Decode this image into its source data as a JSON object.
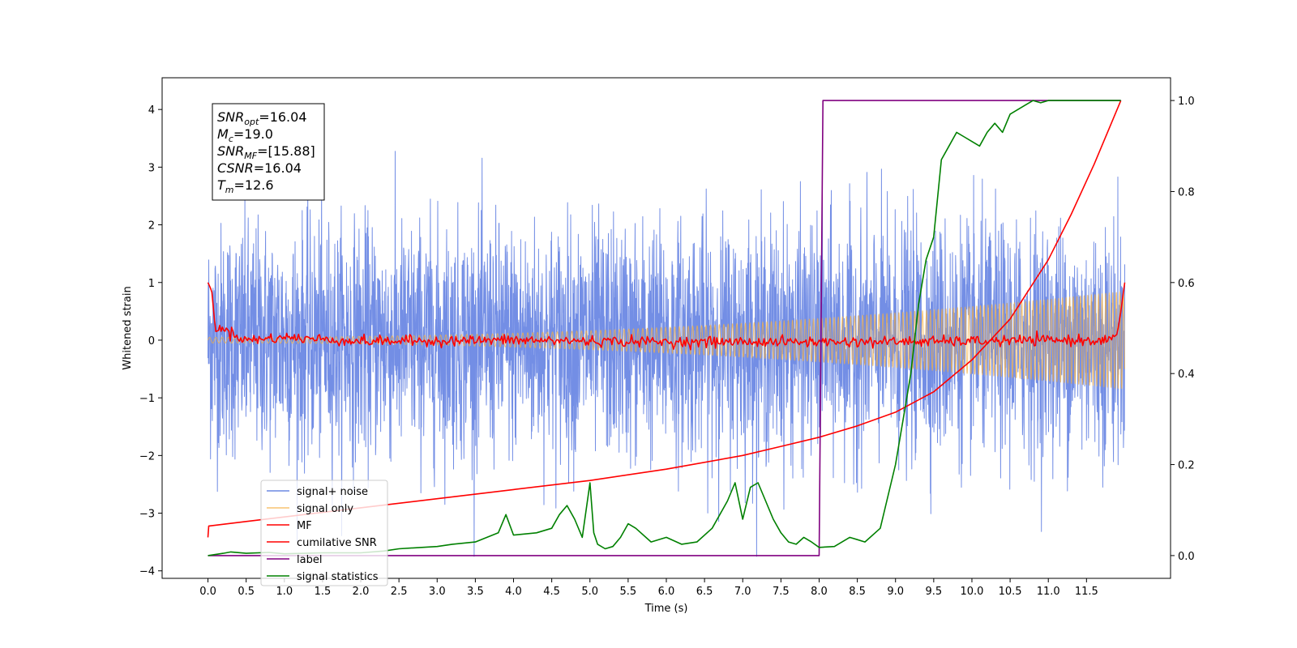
{
  "chart_data": {
    "type": "line",
    "xlabel": "Time (s)",
    "ylabel": "Whitened strain",
    "xlim": [
      -0.6,
      12.6
    ],
    "ylim": [
      -4.13,
      4.55
    ],
    "y2lim": [
      -0.05,
      1.05
    ],
    "x_ticks": [
      "0.0",
      "0.5",
      "1.0",
      "1.5",
      "2.0",
      "2.5",
      "3.0",
      "3.5",
      "4.0",
      "4.5",
      "5.0",
      "5.5",
      "6.0",
      "6.5",
      "7.0",
      "7.5",
      "8.0",
      "8.5",
      "9.0",
      "9.5",
      "10.0",
      "10.5",
      "11.0",
      "11.5"
    ],
    "y_ticks": [
      "4",
      "3",
      "2",
      "1",
      "0",
      "−1",
      "−2",
      "−3",
      "−4"
    ],
    "y2_ticks": [
      "1.0",
      "0.8",
      "0.6",
      "0.4",
      "0.2",
      "0.0"
    ],
    "legend_position": "lower-left",
    "annotation": [
      {
        "base": "SNR",
        "sub": "opt",
        "value": "=16.04"
      },
      {
        "base": "M",
        "sub": "c",
        "value": "=19.0"
      },
      {
        "base": "SNR",
        "sub": "MF",
        "value": "=[15.88]"
      },
      {
        "base": "CSNR",
        "sub": "",
        "value": "=16.04"
      },
      {
        "base": "T",
        "sub": "m",
        "value": "=12.6"
      }
    ],
    "series": [
      {
        "name": "signal+ noise",
        "axis": "left",
        "color": "#6b88e4",
        "kind": "noise",
        "x_range": [
          0,
          12
        ],
        "std": 1.0,
        "approx_extremes": {
          "max": 4.18,
          "min": -3.75
        }
      },
      {
        "name": "signal only",
        "axis": "left",
        "color": "#f5b041",
        "kind": "chirp",
        "x_range": [
          0,
          12
        ],
        "amplitude_start": 0.05,
        "amplitude_end": 0.85
      },
      {
        "name": "MF",
        "axis": "left",
        "color": "#ff0000",
        "kind": "mf",
        "x": [
          0.0,
          0.05,
          0.1,
          0.2,
          0.5,
          1.0,
          2.0,
          4.0,
          6.0,
          8.0,
          10.0,
          11.0,
          11.8,
          11.9,
          11.95,
          12.0
        ],
        "y": [
          1.0,
          0.85,
          0.15,
          0.2,
          0.0,
          0.05,
          -0.02,
          0.0,
          -0.03,
          -0.03,
          -0.02,
          0.0,
          0.0,
          0.1,
          0.5,
          1.0
        ]
      },
      {
        "name": "cumilative SNR",
        "axis": "right",
        "color": "#ff0000",
        "kind": "line",
        "x": [
          0.0,
          0.01,
          0.5,
          1.0,
          2.0,
          3.0,
          4.0,
          5.0,
          6.0,
          7.0,
          7.5,
          8.0,
          8.5,
          9.0,
          9.5,
          10.0,
          10.5,
          11.0,
          11.3,
          11.6,
          11.8,
          11.95
        ],
        "y": [
          0.04,
          0.065,
          0.075,
          0.085,
          0.105,
          0.125,
          0.145,
          0.165,
          0.19,
          0.22,
          0.24,
          0.26,
          0.285,
          0.315,
          0.36,
          0.43,
          0.52,
          0.65,
          0.75,
          0.86,
          0.94,
          1.0
        ]
      },
      {
        "name": "label",
        "axis": "right",
        "color": "#800080",
        "kind": "line",
        "x": [
          0.0,
          8.0,
          8.05,
          11.95
        ],
        "y": [
          0.0,
          0.0,
          1.0,
          1.0
        ]
      },
      {
        "name": "signal statistics",
        "axis": "right",
        "color": "#008000",
        "kind": "line",
        "x": [
          0.0,
          0.2,
          0.3,
          0.5,
          0.8,
          1.0,
          1.5,
          2.0,
          2.3,
          2.5,
          2.8,
          3.0,
          3.2,
          3.5,
          3.8,
          3.9,
          4.0,
          4.3,
          4.5,
          4.6,
          4.7,
          4.8,
          4.9,
          5.0,
          5.05,
          5.1,
          5.2,
          5.3,
          5.4,
          5.5,
          5.6,
          5.8,
          6.0,
          6.2,
          6.4,
          6.6,
          6.8,
          6.9,
          7.0,
          7.1,
          7.2,
          7.3,
          7.4,
          7.5,
          7.6,
          7.7,
          7.8,
          7.9,
          8.0,
          8.2,
          8.4,
          8.5,
          8.6,
          8.8,
          9.0,
          9.1,
          9.2,
          9.3,
          9.4,
          9.5,
          9.6,
          9.7,
          9.8,
          9.9,
          10.0,
          10.1,
          10.2,
          10.3,
          10.4,
          10.5,
          10.6,
          10.7,
          10.8,
          10.9,
          11.0,
          11.2,
          11.5,
          11.95
        ],
        "y": [
          0.0,
          0.005,
          0.008,
          0.005,
          0.007,
          0.004,
          0.006,
          0.006,
          0.01,
          0.015,
          0.018,
          0.02,
          0.025,
          0.03,
          0.05,
          0.09,
          0.045,
          0.05,
          0.06,
          0.09,
          0.11,
          0.08,
          0.04,
          0.16,
          0.05,
          0.025,
          0.015,
          0.02,
          0.04,
          0.07,
          0.06,
          0.03,
          0.04,
          0.025,
          0.03,
          0.06,
          0.12,
          0.16,
          0.08,
          0.15,
          0.16,
          0.12,
          0.08,
          0.05,
          0.03,
          0.025,
          0.04,
          0.03,
          0.018,
          0.02,
          0.04,
          0.035,
          0.03,
          0.06,
          0.2,
          0.3,
          0.4,
          0.55,
          0.65,
          0.7,
          0.87,
          0.9,
          0.93,
          0.92,
          0.91,
          0.9,
          0.93,
          0.95,
          0.93,
          0.97,
          0.98,
          0.99,
          1.0,
          0.995,
          1.0,
          1.0,
          1.0,
          1.0
        ]
      }
    ]
  }
}
